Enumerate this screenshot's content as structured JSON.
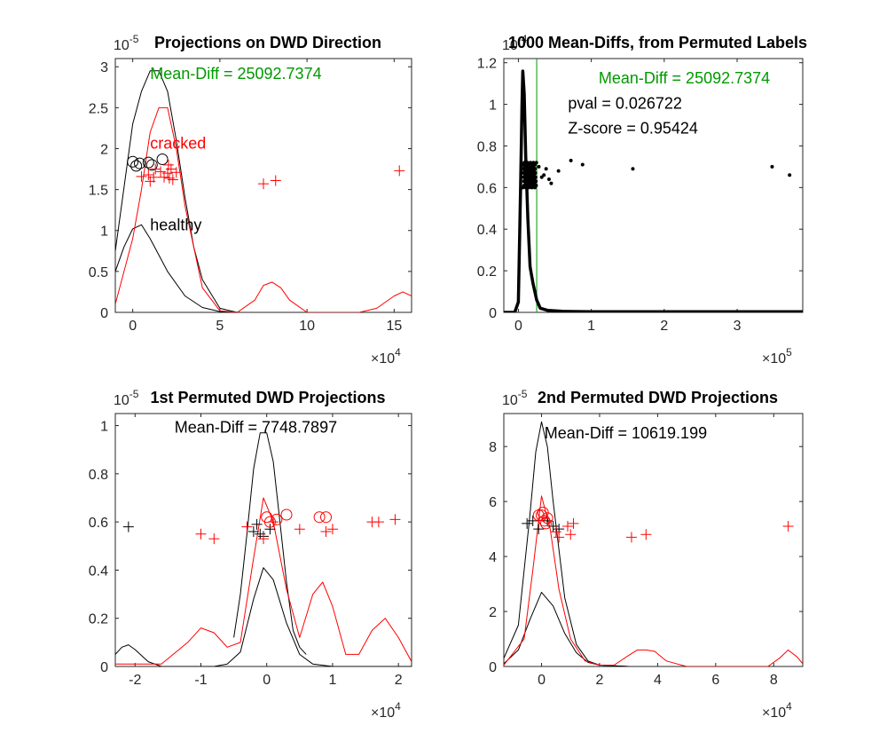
{
  "chart_data": [
    {
      "type": "line",
      "title": "Projections on DWD Direction",
      "exponent_x": "10",
      "exponent_x_pow": "4",
      "exponent_y": "10",
      "exponent_y_pow": "-5",
      "xlim": [
        -1,
        16
      ],
      "ylim": [
        0,
        3.1
      ],
      "xticks": [
        0,
        5,
        10,
        15
      ],
      "yticks": [
        0,
        0.5,
        1,
        1.5,
        2,
        2.5,
        3
      ],
      "annotations": [
        {
          "text": "Mean-Diff = 25092.7374",
          "x": 1.0,
          "y": 2.85,
          "color": "#009900"
        },
        {
          "text": "cracked",
          "x": 1.0,
          "y": 2.0,
          "color": "#ff0000"
        },
        {
          "text": "healthy",
          "x": 1.0,
          "y": 1.0,
          "color": "#000000"
        }
      ],
      "series": [
        {
          "color": "#000000",
          "values_x": [
            -1,
            0,
            0.5,
            1,
            1.5,
            2,
            2.5,
            3,
            3.5,
            4,
            5,
            6
          ],
          "values_y": [
            0.75,
            2.3,
            2.7,
            2.95,
            2.95,
            2.7,
            2.1,
            1.4,
            0.8,
            0.4,
            0.05,
            0
          ]
        },
        {
          "color": "#000000",
          "values_x": [
            -1,
            -0.5,
            0,
            0.5,
            1,
            1.5,
            2,
            3,
            4,
            5,
            6
          ],
          "values_y": [
            0.5,
            0.8,
            1.02,
            1.07,
            0.9,
            0.7,
            0.5,
            0.2,
            0.06,
            0.01,
            0
          ]
        },
        {
          "color": "#ff0000",
          "values_x": [
            -1,
            0,
            0.5,
            1,
            1.5,
            2,
            2.5,
            3,
            4,
            5,
            6,
            7,
            7.5,
            8,
            8.5,
            9,
            10,
            13,
            14,
            15,
            15.5,
            16
          ],
          "values_y": [
            0.1,
            0.9,
            1.5,
            2.2,
            2.5,
            2.5,
            2.0,
            1.3,
            0.3,
            0.02,
            0,
            0.15,
            0.33,
            0.37,
            0.3,
            0.15,
            0,
            0,
            0.05,
            0.2,
            0.25,
            0.2
          ]
        }
      ],
      "points": [
        {
          "marker": "circle",
          "color": "#000000",
          "xy": [
            [
              0,
              1.84
            ],
            [
              0.4,
              1.82
            ],
            [
              0.9,
              1.83
            ],
            [
              1.1,
              1.8
            ],
            [
              0.2,
              1.79
            ],
            [
              1.7,
              1.87
            ]
          ]
        },
        {
          "marker": "plus",
          "color": "#ff0000",
          "xy": [
            [
              0.5,
              1.66
            ],
            [
              0.9,
              1.68
            ],
            [
              1.0,
              1.6
            ],
            [
              1.2,
              1.65
            ],
            [
              1.3,
              1.75
            ],
            [
              1.6,
              1.72
            ],
            [
              1.8,
              1.65
            ],
            [
              2.0,
              1.7
            ],
            [
              2.1,
              1.64
            ],
            [
              2.2,
              1.75
            ],
            [
              2.3,
              1.62
            ],
            [
              2.5,
              1.71
            ],
            [
              7.5,
              1.57
            ],
            [
              8.2,
              1.61
            ],
            [
              15.3,
              1.73
            ],
            [
              2.05,
              1.8
            ]
          ]
        }
      ]
    },
    {
      "type": "line",
      "title": "1000 Mean-Diffs, from Permuted Labels",
      "exponent_x": "10",
      "exponent_x_pow": "5",
      "exponent_y": "10",
      "exponent_y_pow": "-4",
      "xlim": [
        -0.2,
        3.9
      ],
      "ylim": [
        0,
        1.22
      ],
      "xticks": [
        0,
        1,
        2,
        3
      ],
      "yticks": [
        0,
        0.2,
        0.4,
        0.6,
        0.8,
        1,
        1.2
      ],
      "annotations": [
        {
          "text": "Mean-Diff = 25092.7374",
          "x": 1.1,
          "y": 1.1,
          "color": "#009900"
        },
        {
          "text": "pval = 0.026722",
          "x": 0.68,
          "y": 0.98,
          "color": "#000000"
        },
        {
          "text": "Z-score = 0.95424",
          "x": 0.68,
          "y": 0.86,
          "color": "#000000"
        }
      ],
      "vline": {
        "x": 0.251,
        "color": "#009900"
      },
      "series": [
        {
          "color": "#000000",
          "width": 3.5,
          "values_x": [
            -0.2,
            -0.05,
            0.0,
            0.03,
            0.05,
            0.06,
            0.08,
            0.1,
            0.13,
            0.16,
            0.18,
            0.2,
            0.25,
            0.3,
            0.4,
            0.6,
            1.0,
            3.9
          ],
          "values_y": [
            0,
            0,
            0.05,
            0.6,
            1.0,
            1.16,
            1.05,
            0.75,
            0.45,
            0.22,
            0.18,
            0.14,
            0.06,
            0.02,
            0.01,
            0.005,
            0.003,
            0.003
          ]
        }
      ],
      "points": [
        {
          "marker": "dot",
          "color": "#000000",
          "xy": [
            [
              0.32,
              0.65
            ],
            [
              0.38,
              0.69
            ],
            [
              0.45,
              0.62
            ],
            [
              0.55,
              0.68
            ],
            [
              0.72,
              0.73
            ],
            [
              0.88,
              0.71
            ],
            [
              1.57,
              0.69
            ],
            [
              3.48,
              0.7
            ],
            [
              3.72,
              0.66
            ],
            [
              0.28,
              0.7
            ],
            [
              0.35,
              0.66
            ],
            [
              0.42,
              0.64
            ]
          ]
        }
      ]
    },
    {
      "type": "line",
      "title": "1st Permuted DWD Projections",
      "exponent_x": "10",
      "exponent_x_pow": "4",
      "exponent_y": "10",
      "exponent_y_pow": "-5",
      "xlim": [
        -2.3,
        2.2
      ],
      "ylim": [
        0,
        1.05
      ],
      "xticks": [
        -2,
        -1,
        0,
        1,
        2
      ],
      "yticks": [
        0,
        0.2,
        0.4,
        0.6,
        0.8,
        1
      ],
      "annotations": [
        {
          "text": "Mean-Diff = 7748.7897",
          "x": -1.4,
          "y": 0.97,
          "color": "#000000"
        }
      ],
      "series": [
        {
          "color": "#000000",
          "values_x": [
            -0.5,
            -0.4,
            -0.3,
            -0.2,
            -0.1,
            0,
            0.1,
            0.2,
            0.3,
            0.4,
            0.5,
            0.6
          ],
          "values_y": [
            0.12,
            0.3,
            0.55,
            0.82,
            0.97,
            0.97,
            0.85,
            0.6,
            0.35,
            0.15,
            0.08,
            0.05
          ]
        },
        {
          "color": "#000000",
          "values_x": [
            -2.3,
            -2.2,
            -2.1,
            -2.0,
            -1.8,
            -1.6,
            -1.4,
            -1.2,
            -1.0,
            -0.8,
            -0.6,
            -0.4,
            -0.2,
            -0.05,
            0.1,
            0.3,
            0.5,
            0.7,
            1.0,
            2.2
          ],
          "values_y": [
            0.05,
            0.08,
            0.09,
            0.07,
            0.02,
            0,
            0,
            0,
            0,
            0,
            0.01,
            0.06,
            0.28,
            0.41,
            0.36,
            0.18,
            0.05,
            0.01,
            0,
            0
          ]
        },
        {
          "color": "#ff0000",
          "values_x": [
            -2.3,
            -1.6,
            -1.2,
            -1.0,
            -0.8,
            -0.6,
            -0.4,
            -0.2,
            -0.05,
            0.1,
            0.3,
            0.5,
            0.7,
            0.85,
            1.0,
            1.2,
            1.4,
            1.6,
            1.8,
            2.0,
            2.2
          ],
          "values_y": [
            0.01,
            0.01,
            0.1,
            0.16,
            0.14,
            0.08,
            0.1,
            0.45,
            0.7,
            0.6,
            0.32,
            0.12,
            0.3,
            0.35,
            0.25,
            0.05,
            0.05,
            0.15,
            0.2,
            0.12,
            0.02
          ]
        }
      ],
      "points": [
        {
          "marker": "plus",
          "color": "#000000",
          "xy": [
            [
              -2.1,
              0.58
            ],
            [
              -0.2,
              0.56
            ],
            [
              -0.1,
              0.55
            ],
            [
              0.05,
              0.57
            ],
            [
              -0.15,
              0.59
            ],
            [
              -0.05,
              0.54
            ]
          ]
        },
        {
          "marker": "plus",
          "color": "#ff0000",
          "xy": [
            [
              -1.0,
              0.55
            ],
            [
              -0.8,
              0.53
            ],
            [
              -0.3,
              0.58
            ],
            [
              -0.05,
              0.53
            ],
            [
              0.1,
              0.6
            ],
            [
              0.5,
              0.57
            ],
            [
              0.9,
              0.56
            ],
            [
              1.0,
              0.57
            ],
            [
              1.6,
              0.6
            ],
            [
              1.7,
              0.6
            ],
            [
              1.95,
              0.61
            ]
          ]
        },
        {
          "marker": "circle",
          "color": "#ff0000",
          "xy": [
            [
              0.0,
              0.62
            ],
            [
              0.05,
              0.6
            ],
            [
              0.15,
              0.61
            ],
            [
              0.3,
              0.63
            ],
            [
              0.8,
              0.62
            ],
            [
              0.9,
              0.62
            ]
          ]
        }
      ]
    },
    {
      "type": "line",
      "title": "2nd Permuted DWD Projections",
      "exponent_x": "10",
      "exponent_x_pow": "4",
      "exponent_y": "10",
      "exponent_y_pow": "-5",
      "xlim": [
        -1.3,
        9.0
      ],
      "ylim": [
        0,
        9.2
      ],
      "xticks": [
        0,
        2,
        4,
        6,
        8
      ],
      "yticks": [
        0,
        2,
        4,
        6,
        8
      ],
      "annotations": [
        {
          "text": "Mean-Diff = 10619.199",
          "x": 0.1,
          "y": 8.3,
          "color": "#000000"
        }
      ],
      "series": [
        {
          "color": "#000000",
          "values_x": [
            -1.3,
            -0.8,
            -0.4,
            -0.2,
            0,
            0.2,
            0.4,
            0.8,
            1.2,
            1.6,
            2.0,
            3.0
          ],
          "values_y": [
            0.3,
            1.5,
            5.5,
            7.8,
            8.9,
            8.0,
            6.0,
            2.5,
            0.8,
            0.2,
            0.05,
            0
          ]
        },
        {
          "color": "#000000",
          "values_x": [
            -1.3,
            -0.8,
            -0.4,
            0,
            0.4,
            0.8,
            1.2,
            1.6,
            2.0,
            3.0
          ],
          "values_y": [
            0.1,
            0.6,
            1.7,
            2.7,
            2.2,
            1.2,
            0.5,
            0.15,
            0.05,
            0
          ]
        },
        {
          "color": "#ff0000",
          "values_x": [
            -1.3,
            -0.6,
            -0.3,
            0,
            0.3,
            0.6,
            1.0,
            1.5,
            2.0,
            2.5,
            3.0,
            3.3,
            3.6,
            3.9,
            4.3,
            5.0,
            7.8,
            8.2,
            8.5,
            8.8,
            9.0
          ],
          "values_y": [
            0.05,
            1.0,
            3.5,
            6.2,
            5.0,
            2.8,
            1.0,
            0.2,
            0.05,
            0.05,
            0.4,
            0.6,
            0.6,
            0.55,
            0.2,
            0,
            0,
            0.3,
            0.6,
            0.35,
            0.1
          ]
        }
      ],
      "points": [
        {
          "marker": "plus",
          "color": "#000000",
          "xy": [
            [
              -0.5,
              5.2
            ],
            [
              -0.3,
              5.3
            ],
            [
              -0.1,
              5.0
            ],
            [
              0.2,
              5.3
            ],
            [
              0.4,
              5.1
            ],
            [
              0.6,
              5.0
            ]
          ]
        },
        {
          "marker": "plus",
          "color": "#ff0000",
          "xy": [
            [
              0.5,
              4.9
            ],
            [
              0.6,
              4.7
            ],
            [
              0.9,
              5.1
            ],
            [
              1.0,
              4.8
            ],
            [
              1.1,
              5.2
            ],
            [
              3.1,
              4.7
            ],
            [
              3.6,
              4.8
            ],
            [
              8.5,
              5.1
            ]
          ]
        },
        {
          "marker": "circle",
          "color": "#ff0000",
          "xy": [
            [
              -0.1,
              5.5
            ],
            [
              0.0,
              5.5
            ],
            [
              0.05,
              5.6
            ],
            [
              0.1,
              5.3
            ],
            [
              0.15,
              5.2
            ],
            [
              0.2,
              5.4
            ]
          ]
        }
      ]
    }
  ]
}
